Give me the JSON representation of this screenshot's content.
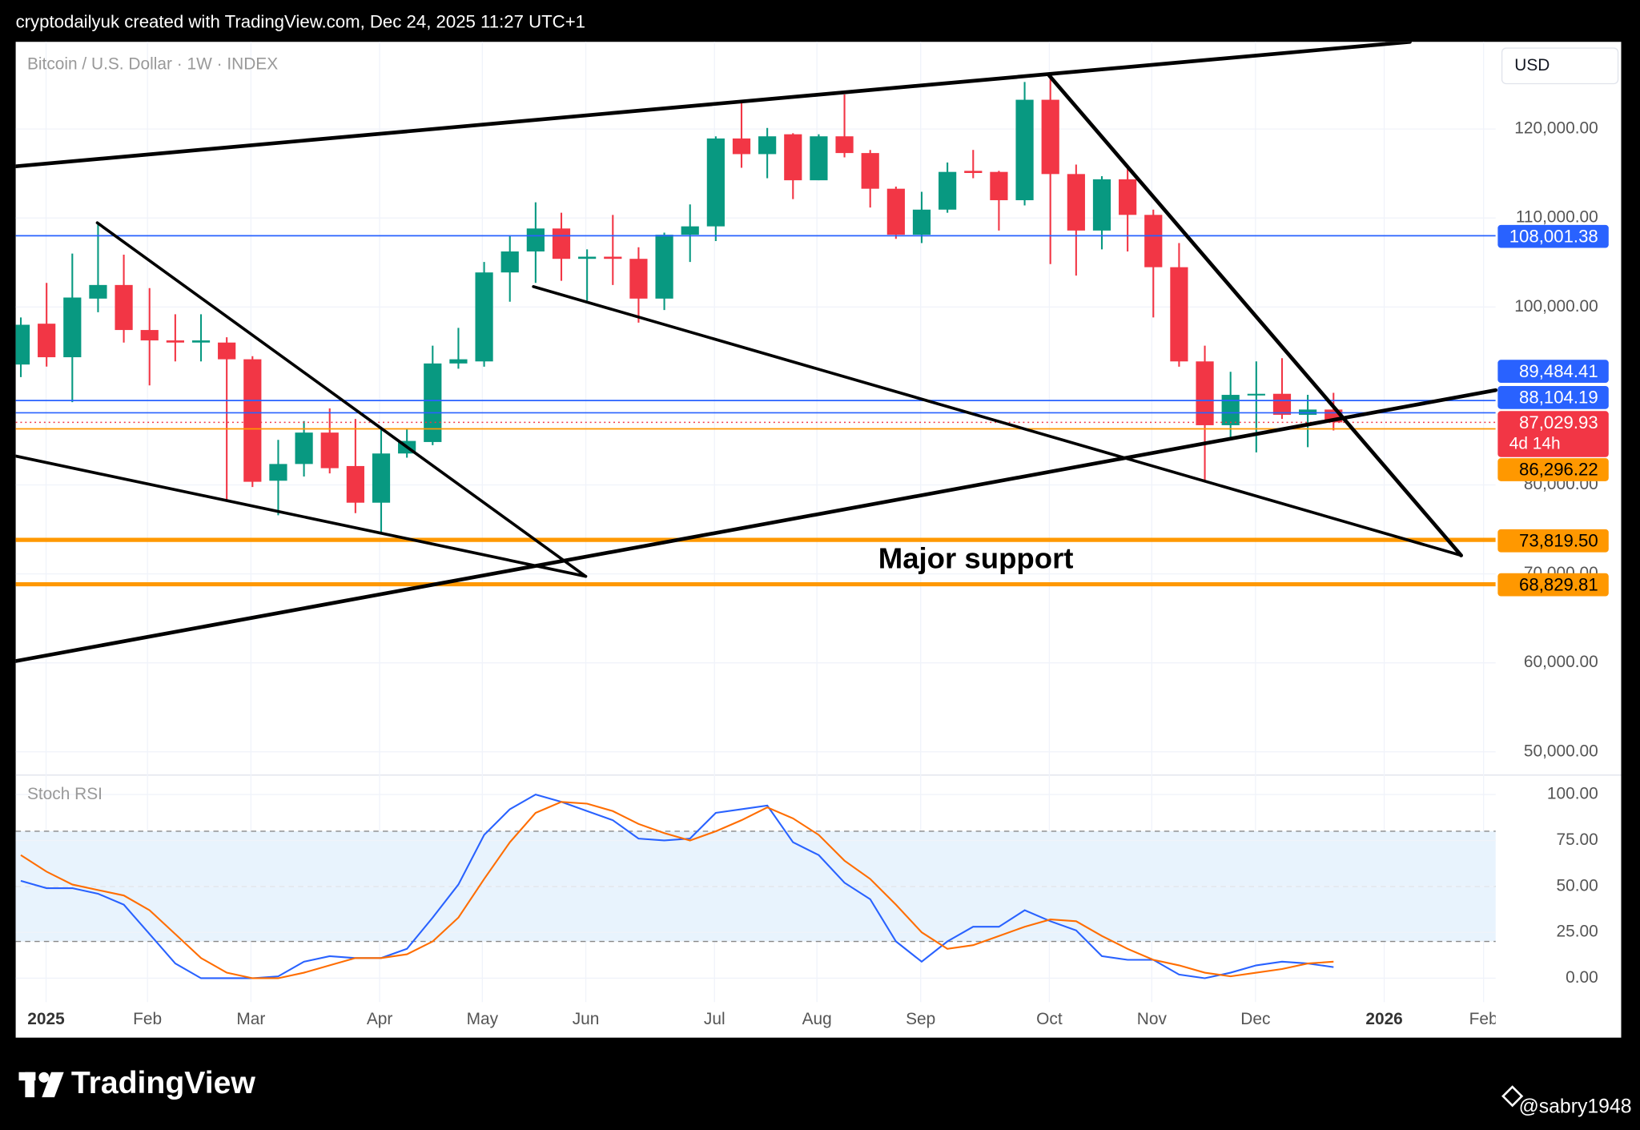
{
  "header": "cryptodailyuk created with TradingView.com, Dec 24, 2025 11:27 UTC+1",
  "footer": {
    "brand": "TradingView",
    "watermark": "@sabry1948"
  },
  "chart_data": [
    {
      "type": "candlestick",
      "title": "Bitcoin / U.S. Dollar · 1W · INDEX",
      "currency": "USD",
      "categories": [
        null,
        null,
        null,
        null,
        null,
        null,
        null,
        null,
        null,
        null,
        null,
        null,
        null,
        null,
        null,
        null,
        null,
        null,
        null,
        null,
        null,
        null,
        null,
        null,
        null,
        null,
        null,
        null,
        null,
        null,
        null,
        null,
        null,
        null,
        null,
        null,
        null,
        null,
        null,
        null,
        null,
        null,
        null,
        null,
        null,
        null,
        null,
        null,
        null,
        null,
        null,
        null
      ],
      "open": [
        93530,
        98120,
        94350,
        100940,
        102470,
        97410,
        96240,
        96000,
        96000,
        94120,
        80470,
        82350,
        85880,
        82120,
        78000,
        83530,
        84820,
        93650,
        93880,
        103880,
        106240,
        108820,
        105410,
        105650,
        105410,
        100940,
        108120,
        109060,
        118940,
        117180,
        119410,
        114240,
        119180,
        117300,
        113290,
        108120,
        110940,
        115300,
        115180,
        112000,
        123290,
        114940,
        108590,
        114350,
        110350,
        104470,
        93880,
        86710,
        90120,
        90240,
        87880,
        88470
      ],
      "high": [
        98820,
        102700,
        106000,
        109400,
        105880,
        102120,
        99180,
        99180,
        96590,
        94470,
        85060,
        87180,
        88590,
        87410,
        86240,
        86240,
        95650,
        97650,
        105060,
        108000,
        111760,
        110590,
        106470,
        110350,
        106710,
        108350,
        111530,
        119180,
        122940,
        120120,
        119530,
        119410,
        123880,
        117650,
        113530,
        112940,
        116240,
        117650,
        115300,
        125290,
        126000,
        116000,
        114700,
        115880,
        110940,
        107180,
        95650,
        92710,
        93880,
        94240,
        90120,
        90350
      ],
      "low": [
        92120,
        93300,
        89300,
        99410,
        96000,
        91180,
        93880,
        93880,
        78230,
        79760,
        76590,
        80940,
        81290,
        76820,
        74710,
        83060,
        84470,
        93060,
        93290,
        100590,
        102700,
        102940,
        100710,
        102470,
        98240,
        99650,
        105060,
        107410,
        115650,
        114470,
        112120,
        114240,
        116820,
        111180,
        107650,
        107180,
        110590,
        114470,
        108590,
        111410,
        104820,
        103530,
        106470,
        106240,
        98820,
        93290,
        80350,
        85290,
        83650,
        87410,
        84240,
        86120
      ],
      "close": [
        98000,
        94350,
        101060,
        102470,
        97410,
        96240,
        96000,
        96240,
        94120,
        80350,
        82350,
        85880,
        81880,
        78000,
        83530,
        84940,
        93650,
        94120,
        103880,
        106240,
        108820,
        105410,
        105650,
        105410,
        100940,
        108120,
        109060,
        118940,
        117180,
        119180,
        114240,
        119180,
        117300,
        113290,
        108120,
        110940,
        115180,
        115060,
        112000,
        123290,
        114940,
        108590,
        114350,
        110350,
        104470,
        93880,
        86710,
        90120,
        90240,
        87880,
        88470,
        87029.93
      ],
      "up_color": "#089981",
      "down_color": "#f23645",
      "xlim": [
        -0.2,
        57.3
      ],
      "xticks": [
        {
          "value": 0.98,
          "label": "2025"
        },
        {
          "value": 4.92,
          "label": "Feb"
        },
        {
          "value": 8.94,
          "label": "Mar"
        },
        {
          "value": 13.94,
          "label": "Apr"
        },
        {
          "value": 17.93,
          "label": "May"
        },
        {
          "value": 21.95,
          "label": "Jun"
        },
        {
          "value": 26.95,
          "label": "Jul"
        },
        {
          "value": 30.93,
          "label": "Aug"
        },
        {
          "value": 34.96,
          "label": "Sep"
        },
        {
          "value": 39.96,
          "label": "Oct"
        },
        {
          "value": 43.94,
          "label": "Nov"
        },
        {
          "value": 47.97,
          "label": "Dec"
        },
        {
          "value": 52.97,
          "label": "2026"
        },
        {
          "value": 56.83,
          "label": "Feb"
        }
      ],
      "ylim": [
        47500,
        129800
      ],
      "yticks": [
        {
          "value": 50000,
          "label": "50,000.00"
        },
        {
          "value": 60000,
          "label": "60,000.00"
        },
        {
          "value": 70000,
          "label": "70,000.00"
        },
        {
          "value": 80000,
          "label": "80,000.00"
        },
        {
          "value": 100000,
          "label": "100,000.00"
        },
        {
          "value": 110000,
          "label": "110,000.00"
        },
        {
          "value": 120000,
          "label": "120,000.00"
        }
      ],
      "grid": true,
      "price_lines": [
        {
          "value": 108001.38,
          "label": "108,001.38",
          "color": "#2962ff",
          "text_color": "#ffffff",
          "style": "thin"
        },
        {
          "value": 89484.41,
          "label": "89,484.41",
          "color": "#2962ff",
          "text_color": "#ffffff",
          "style": "thin"
        },
        {
          "value": 88104.19,
          "label": "88,104.19",
          "color": "#2962ff",
          "text_color": "#ffffff",
          "style": "thin"
        },
        {
          "value": 87029.93,
          "label": "87,029.93",
          "color": "#f23645",
          "text_color": "#ffffff",
          "style": "dotted",
          "countdown": "4d 14h"
        },
        {
          "value": 86296.22,
          "label": "86,296.22",
          "color": "#ff9800",
          "text_color": "#000000",
          "style": "thin"
        },
        {
          "value": 73819.5,
          "label": "73,819.50",
          "color": "#ff9800",
          "text_color": "#000000",
          "style": "thick"
        },
        {
          "value": 68829.81,
          "label": "68,829.81",
          "color": "#ff9800",
          "text_color": "#000000",
          "style": "thick"
        }
      ],
      "annotation": "Major support"
    },
    {
      "type": "line",
      "title": "Stoch RSI",
      "series": [
        {
          "color": "#2962ff",
          "values": [
            53,
            49,
            49,
            46,
            40,
            24,
            8,
            0,
            0,
            0,
            1,
            9,
            12,
            11,
            11,
            16,
            33,
            51,
            78,
            92,
            100,
            96,
            91,
            86,
            76,
            75,
            76,
            90,
            92,
            94,
            74,
            67,
            52,
            43,
            20,
            9,
            20,
            28,
            28,
            37,
            31,
            26,
            12,
            10,
            10,
            2,
            0,
            3,
            7,
            9,
            8,
            6
          ]
        },
        {
          "color": "#ff6d00",
          "values": [
            67,
            58,
            51,
            48,
            45,
            37,
            24,
            11,
            3,
            0,
            0,
            3,
            7,
            11,
            11,
            13,
            20,
            33,
            54,
            74,
            90,
            96,
            95,
            91,
            84,
            79,
            75,
            80,
            86,
            93,
            87,
            78,
            64,
            54,
            40,
            25,
            16,
            18,
            23,
            28,
            32,
            31,
            23,
            16,
            10,
            7,
            3,
            1,
            3,
            5,
            8,
            9
          ]
        }
      ],
      "ylim": [
        -13,
        110
      ],
      "yticks": [
        {
          "value": 0,
          "label": "0.00"
        },
        {
          "value": 25,
          "label": "25.00"
        },
        {
          "value": 50,
          "label": "50.00"
        },
        {
          "value": 75,
          "label": "75.00"
        },
        {
          "value": 100,
          "label": "100.00"
        }
      ],
      "band": [
        20,
        80
      ],
      "levels": [
        20,
        50,
        80
      ],
      "grid": true
    }
  ]
}
